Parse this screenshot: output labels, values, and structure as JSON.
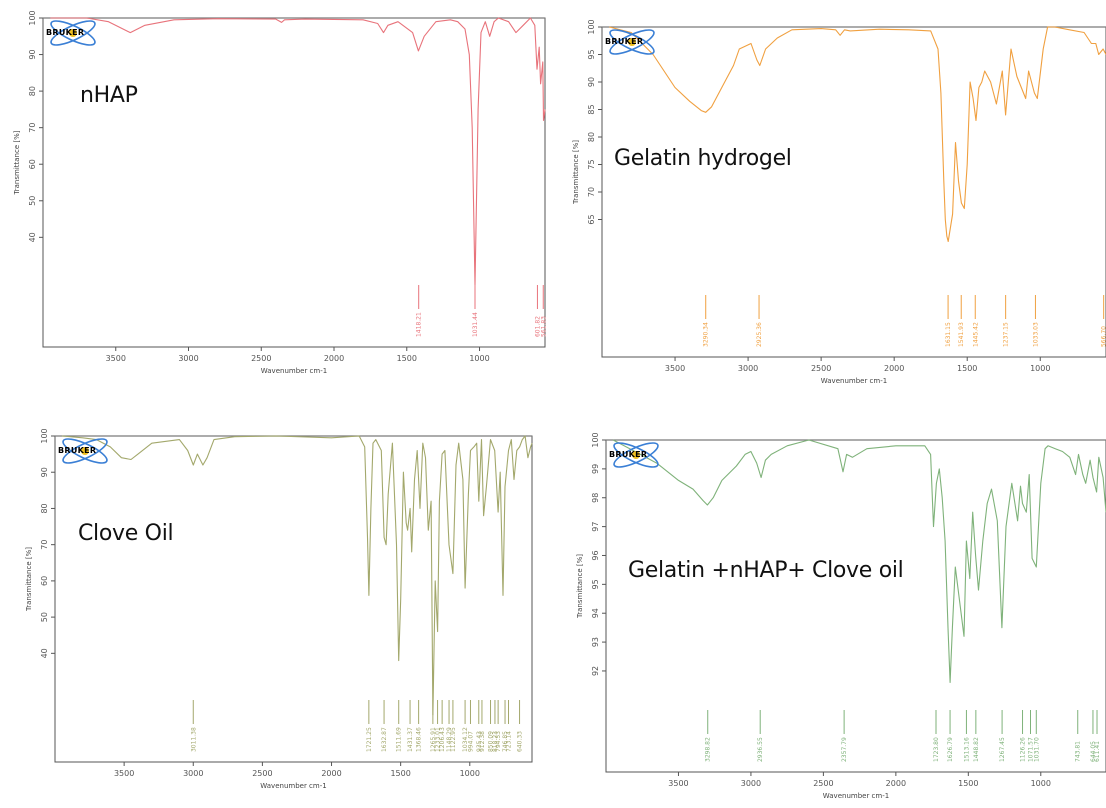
{
  "figure": {
    "panels": [
      {
        "id": "nhap",
        "label": "nHAP",
        "xlabel": "Wavenumber cm-1",
        "ylabel": "Transmittance [%]"
      },
      {
        "id": "gelatin",
        "label": "Gelatin hydrogel",
        "xlabel": "Wavenumber cm-1",
        "ylabel": "Transmittance [%]"
      },
      {
        "id": "clove",
        "label": "Clove Oil",
        "xlabel": "Wavenumber cm-1",
        "ylabel": "Transmittance [%]"
      },
      {
        "id": "combo",
        "label": "Gelatin +nHAP+ Clove oil",
        "xlabel": "Wavenumber cm-1",
        "ylabel": "Transmittance [%]"
      }
    ],
    "logo_text": "BRUKER",
    "colors": {
      "nhap": "#e8737b",
      "gelatin": "#f0a040",
      "clove": "#a3a86c",
      "combo": "#7fb27a",
      "axis": "#555555"
    }
  },
  "chart_data": [
    {
      "type": "line",
      "title": "",
      "legend_label": "nHAP",
      "xlabel": "Wavenumber cm-1",
      "ylabel": "Transmittance [%]",
      "xlim": [
        4000,
        550
      ],
      "ylim": [
        10,
        100
      ],
      "xticks": [
        3500,
        3000,
        2500,
        2000,
        1500,
        1000
      ],
      "yticks": [
        40,
        50,
        60,
        70,
        80,
        90,
        100
      ],
      "x": [
        3950,
        3700,
        3550,
        3450,
        3400,
        3300,
        3100,
        2800,
        2400,
        2360,
        2340,
        2200,
        1800,
        1700,
        1660,
        1630,
        1560,
        1460,
        1420,
        1380,
        1300,
        1200,
        1150,
        1100,
        1070,
        1050,
        1031,
        1010,
        990,
        960,
        930,
        900,
        870,
        800,
        750,
        700,
        650,
        620,
        605,
        590,
        580,
        565,
        560,
        550
      ],
      "y": [
        100,
        100,
        99,
        97,
        96,
        98,
        99.5,
        99.8,
        99.7,
        98.8,
        99.5,
        99.7,
        99.5,
        98.5,
        96,
        98,
        99,
        96,
        91,
        95,
        99,
        99.5,
        99,
        97,
        90,
        70,
        27,
        75,
        96,
        99,
        95,
        99,
        100,
        99,
        96,
        98,
        100,
        98,
        86,
        92,
        82,
        88,
        72,
        75
      ],
      "peak_labels": [
        {
          "x": 1418,
          "label": "1418.21"
        },
        {
          "x": 1031,
          "label": "1031.44"
        },
        {
          "x": 602,
          "label": "601.82"
        },
        {
          "x": 562,
          "label": "561.83"
        }
      ]
    },
    {
      "type": "line",
      "title": "",
      "legend_label": "Gelatin hydrogel",
      "xlabel": "Wavenumber cm-1",
      "ylabel": "Transmittance [%]",
      "xlim": [
        4000,
        550
      ],
      "ylim": [
        40,
        100
      ],
      "xticks": [
        3500,
        3000,
        2500,
        2000,
        1500,
        1000
      ],
      "yticks": [
        65,
        70,
        75,
        80,
        85,
        90,
        95,
        100
      ],
      "x": [
        3950,
        3800,
        3650,
        3500,
        3400,
        3320,
        3290,
        3250,
        3180,
        3100,
        3060,
        2980,
        2940,
        2920,
        2880,
        2800,
        2700,
        2500,
        2400,
        2370,
        2340,
        2300,
        2100,
        1900,
        1750,
        1700,
        1680,
        1660,
        1650,
        1640,
        1630,
        1600,
        1580,
        1560,
        1540,
        1520,
        1500,
        1480,
        1460,
        1440,
        1420,
        1400,
        1380,
        1340,
        1300,
        1260,
        1237,
        1200,
        1160,
        1100,
        1080,
        1040,
        1020,
        980,
        950,
        900,
        800,
        700,
        650,
        620,
        600,
        570,
        550
      ],
      "y": [
        100,
        99,
        95,
        89,
        86.5,
        84.8,
        84.5,
        85.5,
        89,
        93,
        96,
        97,
        94,
        93,
        96,
        98,
        99.5,
        99.7,
        99.5,
        98.5,
        99.5,
        99.3,
        99.6,
        99.5,
        99.3,
        96,
        88,
        72,
        65,
        62,
        61,
        66,
        79,
        72,
        68,
        67,
        75,
        90,
        87,
        83,
        89,
        90,
        92,
        90,
        86,
        92,
        84,
        96,
        91,
        87,
        92,
        88,
        87,
        96,
        100,
        100,
        99.5,
        99,
        97,
        97,
        95,
        96,
        95
      ],
      "peak_labels": [
        {
          "x": 3290,
          "label": "3290.34"
        },
        {
          "x": 2925,
          "label": "2925.36"
        },
        {
          "x": 1631,
          "label": "1631.15"
        },
        {
          "x": 1541,
          "label": "1541.93"
        },
        {
          "x": 1445,
          "label": "1445.42"
        },
        {
          "x": 1237,
          "label": "1237.15"
        },
        {
          "x": 1033,
          "label": "1033.03"
        },
        {
          "x": 566,
          "label": "566.70"
        }
      ]
    },
    {
      "type": "line",
      "title": "",
      "legend_label": "Clove Oil",
      "xlabel": "Wavenumber cm-1",
      "ylabel": "Transmittance [%]",
      "xlim": [
        4000,
        550
      ],
      "ylim": [
        10,
        100
      ],
      "xticks": [
        3500,
        3000,
        2500,
        2000,
        1500,
        1000
      ],
      "yticks": [
        40,
        50,
        60,
        70,
        80,
        90,
        100
      ],
      "x": [
        3950,
        3800,
        3700,
        3600,
        3520,
        3450,
        3400,
        3300,
        3100,
        3040,
        3000,
        2970,
        2930,
        2900,
        2850,
        2700,
        2400,
        2000,
        1800,
        1760,
        1740,
        1730,
        1715,
        1700,
        1680,
        1640,
        1620,
        1605,
        1590,
        1560,
        1530,
        1514,
        1500,
        1480,
        1460,
        1450,
        1432,
        1420,
        1400,
        1380,
        1360,
        1340,
        1320,
        1300,
        1280,
        1267,
        1250,
        1233,
        1220,
        1200,
        1180,
        1150,
        1122,
        1100,
        1080,
        1050,
        1034,
        1010,
        995,
        970,
        950,
        935,
        915,
        900,
        880,
        850,
        820,
        795,
        780,
        760,
        745,
        720,
        700,
        680,
        660,
        640,
        620,
        600,
        580,
        560,
        550
      ],
      "y": [
        100,
        99.5,
        99,
        97,
        94,
        93.5,
        95,
        98,
        99,
        96,
        92,
        95,
        92,
        94,
        99,
        99.8,
        100,
        99.5,
        100,
        97,
        72,
        56,
        80,
        98,
        99,
        96,
        72,
        70,
        84,
        98,
        70,
        38,
        55,
        90,
        76,
        74,
        80,
        68,
        88,
        96,
        80,
        98,
        94,
        74,
        82,
        23,
        60,
        46,
        82,
        95,
        96,
        70,
        62,
        92,
        98,
        88,
        58,
        84,
        96,
        97,
        98,
        82,
        99,
        78,
        86,
        99,
        96,
        79,
        90,
        56,
        86,
        96,
        99,
        88,
        96,
        97,
        99,
        100,
        94,
        97,
        98
      ],
      "peak_labels": [
        {
          "x": 3000,
          "label": "3011.38"
        },
        {
          "x": 1730,
          "label": "1721.25"
        },
        {
          "x": 1620,
          "label": "1632.87"
        },
        {
          "x": 1514,
          "label": "1511.69"
        },
        {
          "x": 1432,
          "label": "1431.37"
        },
        {
          "x": 1370,
          "label": "1368.46"
        },
        {
          "x": 1267,
          "label": "1265.91"
        },
        {
          "x": 1233,
          "label": "1233.01"
        },
        {
          "x": 1200,
          "label": "1206.43"
        },
        {
          "x": 1150,
          "label": "1148.29"
        },
        {
          "x": 1122,
          "label": "1122.95"
        },
        {
          "x": 1034,
          "label": "1034.12"
        },
        {
          "x": 995,
          "label": "994.07"
        },
        {
          "x": 935,
          "label": "935.43"
        },
        {
          "x": 912,
          "label": "912.38"
        },
        {
          "x": 850,
          "label": "850.09"
        },
        {
          "x": 818,
          "label": "818.23"
        },
        {
          "x": 795,
          "label": "794.53"
        },
        {
          "x": 745,
          "label": "746.85"
        },
        {
          "x": 720,
          "label": "723.14"
        },
        {
          "x": 640,
          "label": "640.33"
        }
      ]
    },
    {
      "type": "line",
      "title": "",
      "legend_label": "Gelatin +nHAP+ Clove oil",
      "xlabel": "Wavenumber cm-1",
      "ylabel": "Transmittance [%]",
      "xlim": [
        4000,
        550
      ],
      "ylim": [
        88.5,
        100
      ],
      "xticks": [
        3500,
        3000,
        2500,
        2000,
        1500,
        1000
      ],
      "yticks": [
        92,
        93,
        94,
        95,
        96,
        97,
        98,
        99,
        100
      ],
      "x": [
        3950,
        3800,
        3650,
        3500,
        3400,
        3330,
        3300,
        3260,
        3200,
        3100,
        3040,
        3000,
        2960,
        2930,
        2900,
        2860,
        2750,
        2600,
        2400,
        2365,
        2340,
        2300,
        2200,
        2000,
        1800,
        1760,
        1740,
        1720,
        1700,
        1680,
        1660,
        1640,
        1626,
        1610,
        1590,
        1570,
        1550,
        1530,
        1513,
        1490,
        1470,
        1450,
        1430,
        1400,
        1370,
        1340,
        1300,
        1268,
        1240,
        1200,
        1160,
        1140,
        1126,
        1100,
        1080,
        1060,
        1031,
        1000,
        970,
        950,
        900,
        850,
        800,
        760,
        740,
        710,
        690,
        660,
        640,
        615,
        600,
        570,
        550
      ],
      "y": [
        100,
        99.6,
        99.2,
        98.6,
        98.3,
        97.9,
        97.75,
        98,
        98.6,
        99.1,
        99.5,
        99.6,
        99.2,
        98.7,
        99.3,
        99.5,
        99.8,
        100,
        99.7,
        98.9,
        99.5,
        99.4,
        99.7,
        99.8,
        99.8,
        99.5,
        97,
        98.5,
        99,
        98,
        96.5,
        93.5,
        91.6,
        93.5,
        95.6,
        94.8,
        94,
        93.2,
        96.5,
        95.2,
        97.5,
        96,
        94.8,
        96.5,
        97.8,
        98.3,
        97.2,
        93.5,
        97,
        98.5,
        97.2,
        98.4,
        97.8,
        97.5,
        98.8,
        95.9,
        95.6,
        98.5,
        99.7,
        99.8,
        99.7,
        99.6,
        99.4,
        98.8,
        99.5,
        98.8,
        98.5,
        99.3,
        98.7,
        98.2,
        99.4,
        98.7,
        97.5
      ],
      "peak_labels": [
        {
          "x": 3298,
          "label": "3298.82"
        },
        {
          "x": 2936,
          "label": "2936.55"
        },
        {
          "x": 2357,
          "label": "2357.79"
        },
        {
          "x": 1723,
          "label": "1723.80"
        },
        {
          "x": 1626,
          "label": "1626.79"
        },
        {
          "x": 1513,
          "label": "1513.16"
        },
        {
          "x": 1448,
          "label": "1448.82"
        },
        {
          "x": 1267,
          "label": "1267.45"
        },
        {
          "x": 1126,
          "label": "1126.26"
        },
        {
          "x": 1071,
          "label": "1071.57"
        },
        {
          "x": 1031,
          "label": "1031.70"
        },
        {
          "x": 745,
          "label": "743.81"
        },
        {
          "x": 640,
          "label": "644.05"
        },
        {
          "x": 612,
          "label": "611.41"
        }
      ]
    }
  ]
}
